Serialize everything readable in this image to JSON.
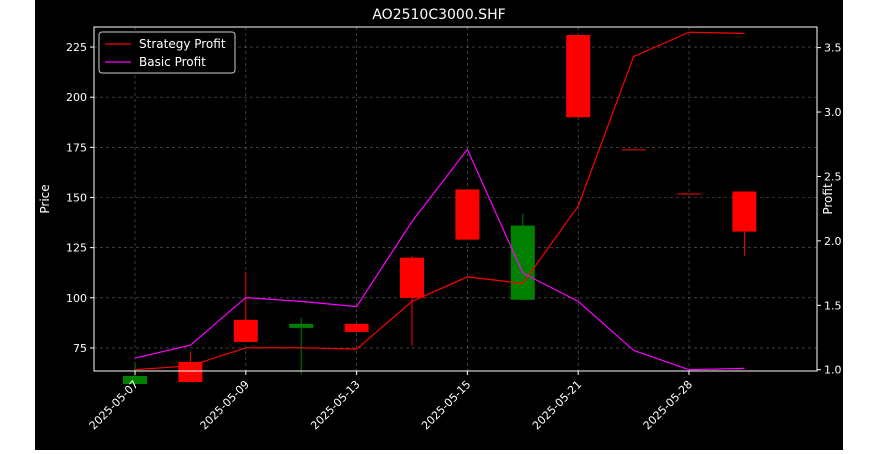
{
  "chart_data": {
    "type": "candlestick",
    "title": "AO2510C3000.SHF",
    "xlabel": "",
    "ylabel": "Price",
    "y2label": "Profit",
    "ylim": [
      63.5,
      235
    ],
    "y2lim": [
      0.99,
      3.66
    ],
    "yticks": [
      75,
      100,
      125,
      150,
      175,
      200,
      225
    ],
    "y2ticks": [
      1.0,
      1.5,
      2.0,
      2.5,
      3.0,
      3.5
    ],
    "y2tick_labels": [
      "1.0",
      "1.5",
      "2.0",
      "2.5",
      "3.0",
      "3.5"
    ],
    "xtick_labels": [
      "2025-05-07",
      "2025-05-09",
      "2025-05-13",
      "2025-05-15",
      "2025-05-21",
      "2025-05-28"
    ],
    "xtick_positions": [
      0,
      2,
      4,
      6,
      8,
      10
    ],
    "grid": true,
    "legend_position": "top-left",
    "colors": {
      "up": "#ff0000",
      "down": "#008000",
      "strategy": "#ff0000",
      "basic": "#ff00ff",
      "background": "#000000",
      "text": "#ffffff"
    },
    "candles": [
      {
        "i": 0,
        "open": 61,
        "close": 57,
        "high": 68,
        "low": 57
      },
      {
        "i": 1,
        "open": 58,
        "close": 68,
        "high": 73,
        "low": 58
      },
      {
        "i": 2,
        "open": 78,
        "close": 89,
        "high": 113,
        "low": 78
      },
      {
        "i": 3,
        "open": 87,
        "close": 85,
        "high": 90,
        "low": 62
      },
      {
        "i": 4,
        "open": 83,
        "close": 87,
        "high": 87,
        "low": 83
      },
      {
        "i": 5,
        "open": 100,
        "close": 120,
        "high": 121,
        "low": 76
      },
      {
        "i": 6,
        "open": 129,
        "close": 154,
        "high": 154,
        "low": 129
      },
      {
        "i": 7,
        "open": 136,
        "close": 99,
        "high": 142,
        "low": 99
      },
      {
        "i": 8,
        "open": 190,
        "close": 231,
        "high": 231,
        "low": 190
      },
      {
        "i": 9,
        "open": 174,
        "close": 174,
        "high": 174,
        "low": 174
      },
      {
        "i": 10,
        "open": 152,
        "close": 152,
        "high": 152,
        "low": 152
      },
      {
        "i": 11,
        "open": 133,
        "close": 153,
        "high": 153,
        "low": 121
      }
    ],
    "series": [
      {
        "name": "Strategy Profit",
        "axis": "right",
        "values": [
          1.0,
          1.03,
          1.17,
          1.17,
          1.16,
          1.53,
          1.72,
          1.67,
          2.27,
          3.43,
          3.62,
          3.61
        ]
      },
      {
        "name": "Basic Profit",
        "axis": "right",
        "values": [
          1.09,
          1.19,
          1.56,
          1.53,
          1.49,
          2.15,
          2.71,
          1.75,
          1.53,
          1.15,
          1.0,
          1.01
        ]
      }
    ]
  }
}
